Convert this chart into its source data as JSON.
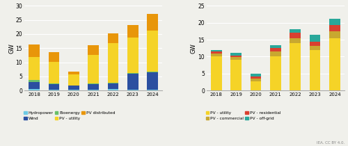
{
  "years": [
    2018,
    2019,
    2020,
    2021,
    2022,
    2023,
    2024
  ],
  "left": {
    "hydropower": [
      0.5,
      0.3,
      0.2,
      0.3,
      0.5,
      0.4,
      0.4
    ],
    "wind": [
      2.5,
      2.0,
      1.5,
      2.0,
      2.0,
      5.5,
      6.0
    ],
    "bioenergy": [
      0.8,
      0.3,
      0.1,
      0.3,
      0.3,
      0.3,
      0.3
    ],
    "pv_utility": [
      8.0,
      7.5,
      3.8,
      10.0,
      14.0,
      12.5,
      14.5
    ],
    "pv_distributed": [
      4.5,
      3.5,
      1.0,
      3.5,
      3.5,
      4.5,
      6.0
    ],
    "ylim": 30,
    "yticks": [
      0,
      5,
      10,
      15,
      20,
      25,
      30
    ],
    "colors": {
      "hydropower": "#6ecae4",
      "wind": "#2b4fa0",
      "bioenergy": "#6abf6a",
      "pv_utility": "#f5d327",
      "pv_distributed": "#e8960a"
    }
  },
  "right": {
    "pv_utility": [
      10.0,
      9.0,
      2.7,
      10.0,
      14.0,
      12.0,
      15.5
    ],
    "pv_commercial": [
      1.0,
      0.8,
      0.8,
      1.5,
      1.5,
      1.2,
      2.0
    ],
    "pv_residential": [
      0.5,
      0.5,
      0.7,
      1.0,
      1.5,
      1.2,
      1.8
    ],
    "pv_offgrid": [
      0.5,
      0.8,
      0.7,
      0.8,
      1.2,
      2.0,
      1.8
    ],
    "ylim": 25,
    "yticks": [
      0,
      5,
      10,
      15,
      20,
      25
    ],
    "colors": {
      "pv_utility": "#f5d327",
      "pv_commercial": "#c8a830",
      "pv_residential": "#d94030",
      "pv_offgrid": "#2aa89a"
    }
  },
  "watermark": "IEA. CC BY 4.0.",
  "ylabel": "GW",
  "bg_color": "#f0f0eb"
}
